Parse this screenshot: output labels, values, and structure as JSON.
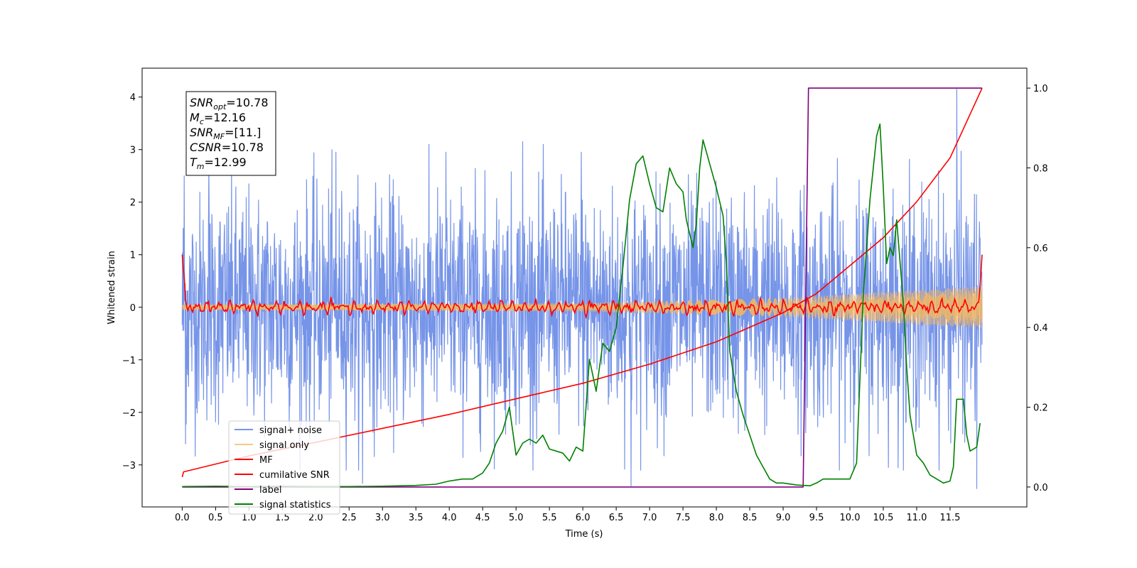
{
  "chart_data": {
    "type": "line",
    "title": "",
    "xlabel": "Time (s)",
    "ylabel": "Whitened strain",
    "y2label": "",
    "xlim": [
      -0.6,
      12.65
    ],
    "ylim": [
      -3.8,
      4.55
    ],
    "y2lim": [
      -0.05,
      1.05
    ],
    "x_ticks": [
      0.0,
      0.5,
      1.0,
      1.5,
      2.0,
      2.5,
      3.0,
      3.5,
      4.0,
      4.5,
      5.0,
      5.5,
      6.0,
      6.5,
      7.0,
      7.5,
      8.0,
      8.5,
      9.0,
      9.5,
      10.0,
      10.5,
      11.0,
      11.5
    ],
    "x_tick_labels": [
      "0.0",
      "0.5",
      "1.0",
      "1.5",
      "2.0",
      "2.5",
      "3.0",
      "3.5",
      "4.0",
      "4.5",
      "5.0",
      "5.5",
      "6.0",
      "6.5",
      "7.0",
      "7.5",
      "8.0",
      "8.5",
      "9.0",
      "9.5",
      "10.0",
      "10.5",
      "11.0",
      "11.5"
    ],
    "y_ticks": [
      -3,
      -2,
      -1,
      0,
      1,
      2,
      3,
      4
    ],
    "y_tick_labels": [
      "−3",
      "−2",
      "−1",
      "0",
      "1",
      "2",
      "3",
      "4"
    ],
    "y2_ticks": [
      0.0,
      0.2,
      0.4,
      0.6,
      0.8,
      1.0
    ],
    "y2_tick_labels": [
      "0.0",
      "0.2",
      "0.4",
      "0.6",
      "0.8",
      "1.0"
    ],
    "grid": false,
    "legend_position": "lower-left",
    "stats_box": {
      "lines": [
        {
          "base": "SNR",
          "sub": "opt",
          "value": "=10.78"
        },
        {
          "base": "M",
          "sub": "c",
          "value": "=12.16"
        },
        {
          "base": "SNR",
          "sub": "MF",
          "value": "=[11.]"
        },
        {
          "base": "CSNR",
          "sub": "",
          "value": "=10.78"
        },
        {
          "base": "T",
          "sub": "m",
          "value": "=12.99"
        }
      ]
    },
    "series": [
      {
        "name": "signal+ noise",
        "color": "#7694e8",
        "axis": "left",
        "style": "noise",
        "x_range": [
          0.0,
          11.98
        ],
        "amplitude_envelope": {
          "x": [
            0.0,
            12.0
          ],
          "y": [
            1.5,
            1.5
          ]
        },
        "spikes": [
          [
            0.03,
            2.5
          ],
          [
            0.05,
            -2.6
          ],
          [
            2.3,
            2.95
          ],
          [
            3.95,
            2.95
          ],
          [
            5.1,
            3.15
          ],
          [
            5.98,
            2.95
          ],
          [
            6.72,
            -3.4
          ],
          [
            11.6,
            4.15
          ],
          [
            11.9,
            -3.45
          ],
          [
            2.7,
            -3.35
          ],
          [
            0.4,
            2.7
          ]
        ]
      },
      {
        "name": "signal only",
        "color": "#f5b760",
        "axis": "left",
        "style": "chirp",
        "x_range": [
          0.0,
          11.98
        ],
        "amplitude_envelope": {
          "x": [
            0.0,
            6.0,
            9.0,
            11.98
          ],
          "y": [
            0.05,
            0.08,
            0.18,
            0.4
          ]
        }
      },
      {
        "name": "MF",
        "color": "#ff0000",
        "axis": "left",
        "style": "wiggle",
        "x_range": [
          0.0,
          11.98
        ],
        "start_value": 1.0,
        "end_value": 1.0,
        "amplitude": 0.1
      },
      {
        "name": "cumilative SNR",
        "color": "#ff0000",
        "axis": "right",
        "style": "line",
        "x": [
          0.0,
          0.02,
          1.0,
          2.0,
          3.0,
          4.0,
          5.0,
          6.0,
          7.0,
          8.0,
          9.0,
          9.5,
          10.0,
          10.5,
          11.0,
          11.5,
          11.98
        ],
        "y": [
          0.025,
          0.038,
          0.078,
          0.112,
          0.147,
          0.182,
          0.221,
          0.26,
          0.308,
          0.364,
          0.437,
          0.485,
          0.555,
          0.625,
          0.715,
          0.825,
          1.0
        ]
      },
      {
        "name": "label",
        "color": "#800080",
        "axis": "right",
        "style": "line",
        "x": [
          0.0,
          9.3,
          9.38,
          11.98
        ],
        "y": [
          0.0,
          0.0,
          1.0,
          1.0
        ]
      },
      {
        "name": "signal statistics",
        "color": "#008000",
        "axis": "right",
        "style": "line",
        "x": [
          0.0,
          0.5,
          1.0,
          1.5,
          2.0,
          2.5,
          3.0,
          3.5,
          3.8,
          4.0,
          4.2,
          4.35,
          4.5,
          4.6,
          4.7,
          4.8,
          4.9,
          5.0,
          5.1,
          5.2,
          5.3,
          5.4,
          5.5,
          5.6,
          5.7,
          5.8,
          5.9,
          6.0,
          6.1,
          6.2,
          6.3,
          6.4,
          6.5,
          6.6,
          6.7,
          6.8,
          6.9,
          7.0,
          7.1,
          7.2,
          7.3,
          7.4,
          7.5,
          7.55,
          7.65,
          7.7,
          7.75,
          7.8,
          7.9,
          8.0,
          8.1,
          8.15,
          8.2,
          8.3,
          8.4,
          8.5,
          8.6,
          8.7,
          8.8,
          8.9,
          9.0,
          9.2,
          9.4,
          9.5,
          9.6,
          9.8,
          9.9,
          10.0,
          10.1,
          10.2,
          10.3,
          10.4,
          10.45,
          10.5,
          10.55,
          10.6,
          10.65,
          10.7,
          10.8,
          10.85,
          10.9,
          11.0,
          11.1,
          11.2,
          11.3,
          11.4,
          11.5,
          11.55,
          11.6,
          11.7,
          11.75,
          11.8,
          11.9,
          11.95
        ],
        "y": [
          0.001,
          0.002,
          0.001,
          0.002,
          0.001,
          0.001,
          0.002,
          0.004,
          0.007,
          0.015,
          0.02,
          0.02,
          0.035,
          0.06,
          0.11,
          0.14,
          0.2,
          0.08,
          0.11,
          0.12,
          0.11,
          0.13,
          0.095,
          0.09,
          0.085,
          0.065,
          0.1,
          0.09,
          0.32,
          0.24,
          0.36,
          0.34,
          0.4,
          0.55,
          0.72,
          0.81,
          0.83,
          0.76,
          0.7,
          0.69,
          0.8,
          0.76,
          0.74,
          0.67,
          0.6,
          0.66,
          0.8,
          0.87,
          0.81,
          0.75,
          0.68,
          0.56,
          0.34,
          0.24,
          0.18,
          0.13,
          0.08,
          0.05,
          0.02,
          0.01,
          0.01,
          0.005,
          0.003,
          0.01,
          0.02,
          0.02,
          0.02,
          0.02,
          0.06,
          0.48,
          0.72,
          0.88,
          0.91,
          0.75,
          0.56,
          0.6,
          0.58,
          0.67,
          0.46,
          0.3,
          0.18,
          0.08,
          0.06,
          0.03,
          0.02,
          0.01,
          0.015,
          0.05,
          0.22,
          0.22,
          0.13,
          0.09,
          0.1,
          0.16
        ]
      }
    ]
  }
}
